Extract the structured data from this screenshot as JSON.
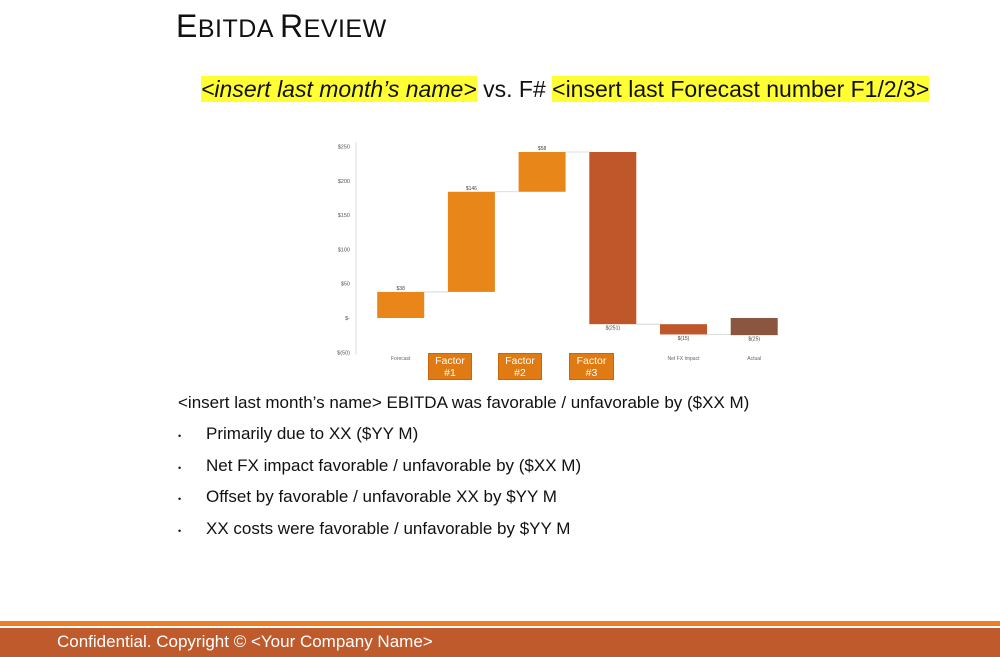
{
  "slide": {
    "title_first": "E",
    "title_caps": "BITDA ",
    "title_second_first": "R",
    "title_second_rest": "EVIEW",
    "subtitle_part1": "<insert last month’s name>",
    "subtitle_mid": " vs. F# ",
    "subtitle_part2": "<insert last Forecast number F1/2/3>",
    "summary": "<insert last month’s name> EBITDA was favorable / unfavorable by ($XX M)",
    "bullets": [
      "Primarily due to XX ($YY M)",
      "Net FX impact favorable / unfavorable by ($XX M)",
      "Offset by favorable / unfavorable XX by $YY M",
      "XX costs were favorable / unfavorable by $YY M"
    ],
    "bullet_glyph": "•",
    "factors": [
      {
        "line1": "Factor",
        "line2": "#1"
      },
      {
        "line1": "Factor",
        "line2": "#2"
      },
      {
        "line1": "Factor",
        "line2": "#3"
      }
    ],
    "footer": "Confidential. Copyright © <Your Company Name>"
  },
  "colors": {
    "increase": "#e8861a",
    "decrease": "#c0572b",
    "total": "#8b5640",
    "highlight": "#ffff33",
    "footer_bar": "#bf5a2c",
    "footer_line": "#f07d22"
  },
  "chart_data": {
    "type": "bar",
    "subtype": "waterfall",
    "categories": [
      "Forecast",
      "",
      "",
      "",
      "Net FX Impact",
      "Actual"
    ],
    "values": [
      38,
      146,
      58,
      -251,
      -15,
      -25
    ],
    "starts": [
      0,
      38,
      184,
      242,
      -9,
      0
    ],
    "kinds": [
      "increase",
      "increase",
      "increase",
      "decrease",
      "decrease",
      "total"
    ],
    "data_labels": [
      "$38",
      "$146",
      "$58",
      "$(251)",
      "$(15)",
      "$(25)"
    ],
    "y_ticks": [
      250,
      200,
      150,
      100,
      50,
      0,
      -50
    ],
    "y_tick_labels": [
      "$250",
      "$200",
      "$150",
      "$100",
      "$50",
      "$-",
      "$(50)"
    ],
    "ylim": [
      -50,
      250
    ],
    "grid": false,
    "legend": "none"
  }
}
